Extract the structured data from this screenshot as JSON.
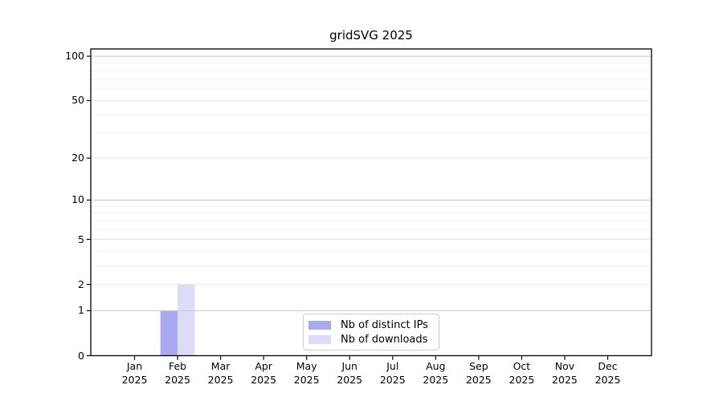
{
  "title": "gridSVG 2025",
  "chart_data": {
    "type": "bar",
    "title": "gridSVG 2025",
    "year_label": "2025",
    "categories": [
      "Jan",
      "Feb",
      "Mar",
      "Apr",
      "May",
      "Jun",
      "Jul",
      "Aug",
      "Sep",
      "Oct",
      "Nov",
      "Dec"
    ],
    "series": [
      {
        "name": "Nb of distinct IPs",
        "color": "#a9a9f2",
        "values": [
          0,
          1,
          0,
          0,
          0,
          0,
          0,
          0,
          0,
          0,
          0,
          0
        ]
      },
      {
        "name": "Nb of downloads",
        "color": "#dcdcf8",
        "values": [
          0,
          2,
          0,
          0,
          0,
          0,
          0,
          0,
          0,
          0,
          0,
          0
        ]
      }
    ],
    "y_axis": {
      "scale": "log1p",
      "tick_values": [
        0,
        1,
        2,
        5,
        10,
        20,
        50,
        100
      ],
      "tick_labels": [
        "0",
        "1",
        "2",
        "5",
        "10",
        "20",
        "50",
        "100"
      ],
      "major_gridlines": [
        1,
        10,
        100
      ],
      "light_gridlines": [
        2,
        5,
        20,
        50
      ],
      "minor_gridlines": [
        3,
        4,
        6,
        7,
        8,
        9,
        30,
        40,
        60,
        70,
        80,
        90
      ],
      "ylim": [
        0,
        112
      ]
    },
    "legend": {
      "position": "bottom-center"
    },
    "grid": true,
    "colors": {
      "frame": "#000000",
      "grid_major": "#c8c8c8",
      "grid_light": "#e4e4e4",
      "grid_minor": "#efefef",
      "legend_border": "#cccccc",
      "background": "#ffffff",
      "text": "#000000"
    }
  }
}
